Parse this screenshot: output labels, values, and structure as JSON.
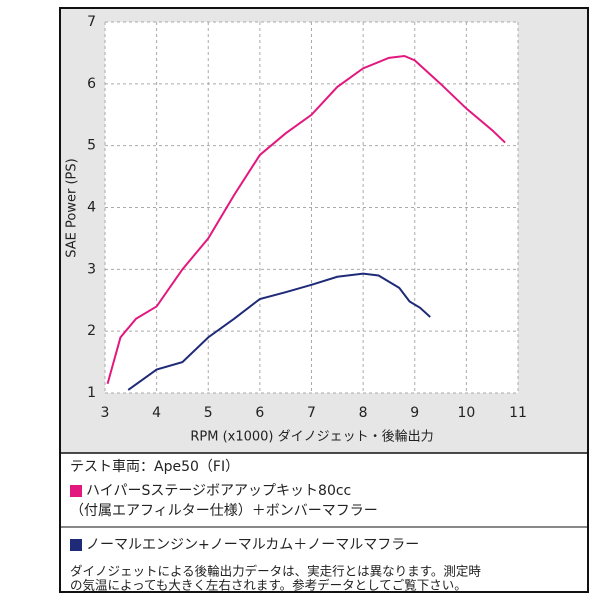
{
  "chart_data": {
    "type": "line",
    "x_label": "RPM (x1000) ダイノジェット・後輪出力",
    "y_label": "SAE Power (PS)",
    "xlim": [
      3,
      11
    ],
    "xticks": [
      3,
      4,
      5,
      6,
      7,
      8,
      9,
      10,
      11
    ],
    "ylim": [
      1,
      7
    ],
    "yticks": [
      1,
      2,
      3,
      4,
      5,
      6,
      7
    ],
    "grid": true,
    "series": [
      {
        "name": "ハイパーSステージボアアップキット80cc",
        "detail": "（付属エアフィルター仕様）＋ボンバーマフラー",
        "color": "#e2187f",
        "x": [
          3.05,
          3.3,
          3.6,
          4.0,
          4.5,
          5.0,
          5.5,
          6.0,
          6.5,
          7.0,
          7.5,
          8.0,
          8.5,
          8.8,
          9.0,
          9.5,
          10.0,
          10.5,
          10.75
        ],
        "values": [
          1.15,
          1.9,
          2.2,
          2.4,
          3.0,
          3.5,
          4.2,
          4.85,
          5.2,
          5.5,
          5.95,
          6.25,
          6.42,
          6.45,
          6.38,
          6.0,
          5.6,
          5.25,
          5.05
        ]
      },
      {
        "name": "ノーマルエンジン+ノーマルカム＋ノーマルマフラー",
        "color": "#1f2a78",
        "x": [
          3.45,
          3.7,
          4.0,
          4.5,
          5.0,
          5.5,
          6.0,
          6.5,
          7.0,
          7.5,
          8.0,
          8.3,
          8.7,
          8.9,
          9.1,
          9.3
        ],
        "values": [
          1.05,
          1.2,
          1.38,
          1.5,
          1.9,
          2.2,
          2.52,
          2.63,
          2.75,
          2.88,
          2.93,
          2.9,
          2.7,
          2.48,
          2.38,
          2.23
        ]
      }
    ]
  },
  "legend": {
    "test_vehicle": "テスト車両：Ape50（FI）",
    "note": [
      "ダイノジェットによる後輪出力データは、実走行とは異なります。測定時",
      "の気温によっても大きく左右されます。参考データとしてご覧下さい。"
    ]
  }
}
